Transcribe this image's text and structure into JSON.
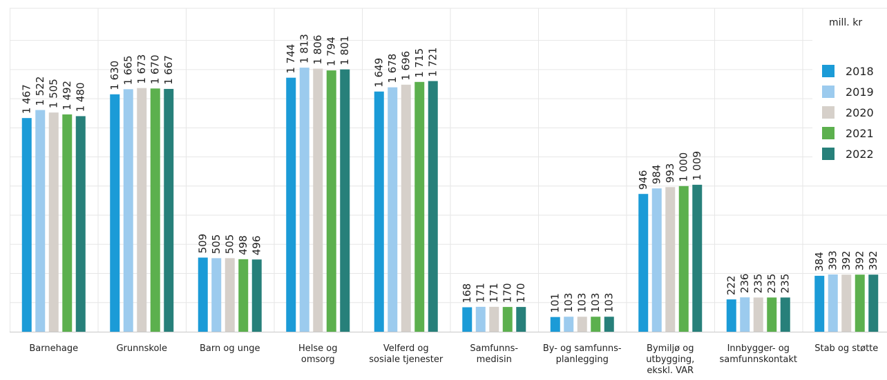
{
  "chart_data": {
    "type": "bar",
    "unit_label": "mill. kr",
    "categories": [
      "Barnehage",
      "Grunnskole",
      "Barn og unge",
      "Helse og\nomsorg",
      "Velferd og\nsosiale tjenester",
      "Samfunns-\nmedisin",
      "By- og samfunns-\nplanlegging",
      "Bymiljø og\nutbygging,\nekskl. VAR",
      "Innbygger- og\nsamfunnskontakt",
      "Stab og støtte"
    ],
    "series": [
      {
        "name": "2018",
        "color": "#1b9bd7",
        "values": [
          1467,
          1630,
          509,
          1744,
          1649,
          168,
          101,
          946,
          222,
          384
        ]
      },
      {
        "name": "2019",
        "color": "#9ccbee",
        "values": [
          1522,
          1665,
          505,
          1813,
          1678,
          171,
          103,
          984,
          236,
          393
        ]
      },
      {
        "name": "2020",
        "color": "#d6d0ca",
        "values": [
          1505,
          1673,
          505,
          1806,
          1696,
          171,
          103,
          993,
          235,
          392
        ]
      },
      {
        "name": "2021",
        "color": "#5cb04e",
        "values": [
          1492,
          1670,
          498,
          1794,
          1715,
          170,
          103,
          1000,
          235,
          392
        ]
      },
      {
        "name": "2022",
        "color": "#27807a",
        "values": [
          1480,
          1667,
          496,
          1801,
          1721,
          170,
          103,
          1009,
          235,
          392
        ]
      }
    ],
    "value_labels": [
      [
        "1 467",
        "1 522",
        "1 505",
        "1 492",
        "1 480"
      ],
      [
        "1 630",
        "1 665",
        "1 673",
        "1 670",
        "1 667"
      ],
      [
        "509",
        "505",
        "505",
        "498",
        "496"
      ],
      [
        "1 744",
        "1 813",
        "1 806",
        "1 794",
        "1 801"
      ],
      [
        "1 649",
        "1 678",
        "1 696",
        "1 715",
        "1 721"
      ],
      [
        "168",
        "171",
        "171",
        "170",
        "170"
      ],
      [
        "101",
        "103",
        "103",
        "103",
        "103"
      ],
      [
        "946",
        "984",
        "993",
        "1 000",
        "1 009"
      ],
      [
        "222",
        "236",
        "235",
        "235",
        "235"
      ],
      [
        "384",
        "393",
        "392",
        "392",
        "392"
      ]
    ],
    "ylim": [
      0,
      2200
    ],
    "grid": true,
    "legend_position": "top-right"
  }
}
